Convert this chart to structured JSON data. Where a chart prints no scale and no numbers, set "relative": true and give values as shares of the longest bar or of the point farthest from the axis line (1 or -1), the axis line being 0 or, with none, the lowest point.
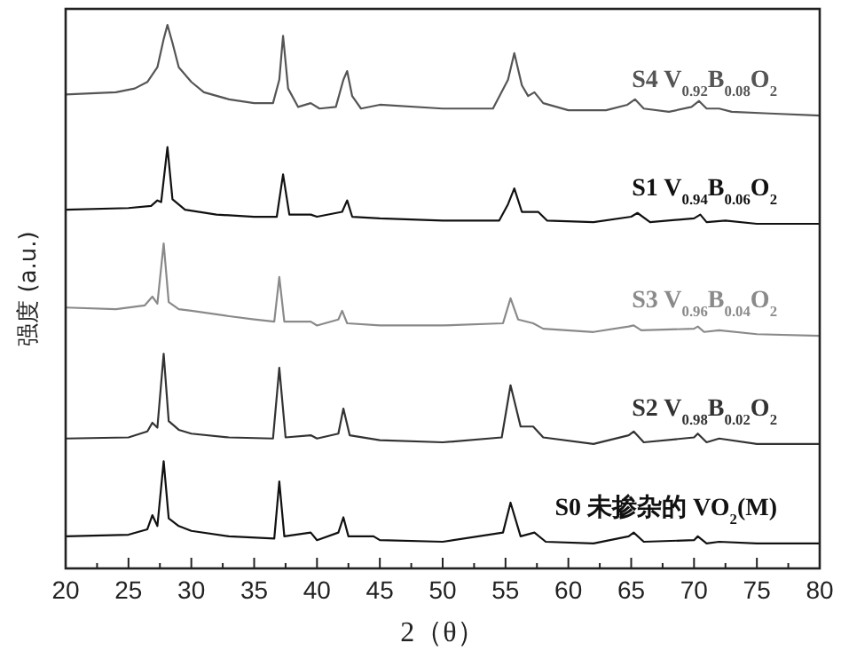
{
  "chart_data": {
    "type": "line",
    "relative": true,
    "xlabel": "2（θ）",
    "ylabel": "强度 (a.u.)",
    "xlim": [
      20,
      80
    ],
    "xticks": [
      20,
      {
        "value": 22.5,
        "label": null
      },
      25,
      {
        "value": 27.5,
        "label": null
      },
      30,
      {
        "value": 32.5,
        "label": null
      },
      35,
      {
        "value": 37.5,
        "label": null
      },
      40,
      {
        "value": 42.5,
        "label": null
      },
      45,
      {
        "value": 47.5,
        "label": null
      },
      50,
      {
        "value": 52.5,
        "label": null
      },
      55,
      {
        "value": 57.5,
        "label": null
      },
      60,
      {
        "value": 62.5,
        "label": null
      },
      65,
      {
        "value": 67.5,
        "label": null
      },
      70,
      {
        "value": 72.5,
        "label": null
      },
      75,
      {
        "value": 77.5,
        "label": null
      },
      80
    ],
    "grid": false,
    "legend": false,
    "marker": "none",
    "line_style": "solid",
    "series": [
      {
        "name": "S4  V$_{0.92}$B$_{0.08}$O$_{2}$",
        "color": "#555555",
        "x": [
          20,
          24,
          25.5,
          26.5,
          27.3,
          27.8,
          28.1,
          28.5,
          29,
          30,
          31,
          33,
          35,
          36.5,
          37,
          37.3,
          37.7,
          38.5,
          39.5,
          40.2,
          41.5,
          42.1,
          42.4,
          42.8,
          43.5,
          45,
          50,
          54,
          55.2,
          55.7,
          56.3,
          56.8,
          57.3,
          58,
          60,
          63,
          64.7,
          65.3,
          66,
          68,
          69.8,
          70.4,
          71,
          72,
          73,
          76,
          80
        ],
        "values": [
          0.872,
          0.876,
          0.883,
          0.895,
          0.922,
          0.974,
          1,
          0.967,
          0.922,
          0.895,
          0.876,
          0.863,
          0.856,
          0.856,
          0.899,
          0.98,
          0.883,
          0.849,
          0.856,
          0.846,
          0.849,
          0.899,
          0.915,
          0.869,
          0.846,
          0.853,
          0.846,
          0.846,
          0.899,
          0.948,
          0.889,
          0.869,
          0.876,
          0.856,
          0.843,
          0.843,
          0.853,
          0.863,
          0.846,
          0.84,
          0.849,
          0.86,
          0.846,
          0.846,
          0.84,
          0.837,
          0.833
        ]
      },
      {
        "name": "S1  V$_{0.94}$B$_{0.06}$O$_{2}$",
        "color": "#111111",
        "x": [
          20,
          25,
          26.8,
          27.3,
          27.6,
          28.1,
          28.5,
          29.5,
          32,
          35,
          36.8,
          37.3,
          37.8,
          39.5,
          40,
          42,
          42.4,
          42.8,
          45,
          50,
          54.5,
          55.2,
          55.7,
          56.3,
          57.6,
          58.3,
          62,
          65,
          65.5,
          66.5,
          70,
          70.5,
          71,
          72.5,
          75,
          80
        ],
        "values": [
          0.66,
          0.663,
          0.667,
          0.677,
          0.674,
          0.775,
          0.679,
          0.66,
          0.651,
          0.647,
          0.647,
          0.725,
          0.651,
          0.651,
          0.647,
          0.656,
          0.677,
          0.647,
          0.644,
          0.64,
          0.64,
          0.67,
          0.699,
          0.656,
          0.656,
          0.64,
          0.637,
          0.647,
          0.654,
          0.637,
          0.644,
          0.651,
          0.637,
          0.64,
          0.634,
          0.634
        ]
      },
      {
        "name": "S3  V$_{0.96}$B$_{0.04}$O$_{2}$",
        "color": "#8a8a8a",
        "x": [
          20,
          24,
          26.3,
          26.9,
          27.3,
          27.8,
          28.2,
          29,
          30,
          33,
          35,
          36.6,
          37,
          37.4,
          39.5,
          40,
          41.7,
          42,
          42.4,
          45,
          50,
          54.8,
          55.4,
          56,
          57.2,
          58,
          62,
          64.8,
          65.2,
          65.8,
          70,
          70.3,
          70.8,
          72,
          75,
          80
        ],
        "values": [
          0.48,
          0.477,
          0.484,
          0.5,
          0.487,
          0.598,
          0.49,
          0.477,
          0.474,
          0.464,
          0.458,
          0.454,
          0.536,
          0.454,
          0.454,
          0.447,
          0.458,
          0.474,
          0.451,
          0.447,
          0.447,
          0.451,
          0.497,
          0.458,
          0.451,
          0.441,
          0.435,
          0.445,
          0.447,
          0.438,
          0.441,
          0.445,
          0.435,
          0.438,
          0.431,
          0.428
        ]
      },
      {
        "name": "S2  V$_{0.98}$B$_{0.02}$O$_{2}$",
        "color": "#333333",
        "x": [
          20,
          25,
          26.5,
          26.9,
          27.3,
          27.8,
          28.2,
          29,
          30,
          33,
          36.5,
          37,
          37.5,
          39.5,
          40,
          41.7,
          42.1,
          42.6,
          45,
          50,
          54.7,
          55.4,
          56.2,
          57.2,
          58,
          62,
          64.8,
          65.2,
          66,
          70,
          70.3,
          71,
          72,
          75,
          80
        ],
        "values": [
          0.239,
          0.241,
          0.252,
          0.268,
          0.259,
          0.395,
          0.271,
          0.255,
          0.248,
          0.241,
          0.239,
          0.369,
          0.241,
          0.245,
          0.239,
          0.248,
          0.294,
          0.245,
          0.236,
          0.232,
          0.241,
          0.337,
          0.261,
          0.261,
          0.241,
          0.229,
          0.245,
          0.252,
          0.232,
          0.241,
          0.248,
          0.232,
          0.239,
          0.229,
          0.229
        ]
      },
      {
        "name": "S0  未掺杂的 VO$_{2}$(M)",
        "color": "#111111",
        "x": [
          20,
          25,
          26.5,
          26.9,
          27.3,
          27.8,
          28.2,
          29,
          30,
          33,
          36.6,
          37,
          37.4,
          39.5,
          40,
          41.7,
          42.1,
          42.5,
          44.5,
          45,
          50,
          54.8,
          55.4,
          56.2,
          57.3,
          58.2,
          62,
          64.8,
          65.2,
          66,
          70,
          70.3,
          71,
          72,
          75,
          80
        ],
        "values": [
          0.059,
          0.062,
          0.072,
          0.098,
          0.078,
          0.197,
          0.092,
          0.078,
          0.069,
          0.059,
          0.055,
          0.16,
          0.059,
          0.066,
          0.052,
          0.066,
          0.094,
          0.059,
          0.059,
          0.052,
          0.049,
          0.066,
          0.121,
          0.059,
          0.066,
          0.049,
          0.046,
          0.059,
          0.066,
          0.049,
          0.052,
          0.059,
          0.046,
          0.049,
          0.046,
          0.046
        ]
      }
    ]
  }
}
